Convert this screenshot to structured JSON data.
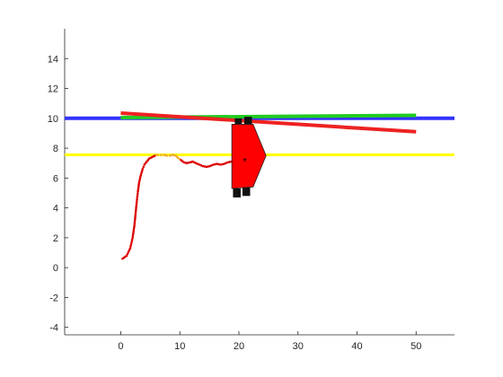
{
  "chart_data": {
    "type": "line",
    "title": "",
    "xlabel": "",
    "ylabel": "",
    "xlim": [
      -9.5,
      56.5
    ],
    "ylim": [
      -4.5,
      16
    ],
    "grid": false,
    "axis_box": "left-bottom",
    "x_ticks": [
      0,
      10,
      20,
      30,
      40,
      50
    ],
    "x_tick_labels": [
      "0",
      "10",
      "20",
      "30",
      "40",
      "50"
    ],
    "y_ticks": [
      -4,
      -2,
      0,
      2,
      4,
      6,
      8,
      10,
      12,
      14
    ],
    "y_tick_labels": [
      "-4",
      "-2",
      "0",
      "2",
      "4",
      "6",
      "8",
      "10",
      "12",
      "14"
    ],
    "series": [
      {
        "kind": "line",
        "color": "#ffff00",
        "width": 3,
        "x": [
          -9.5,
          56.5
        ],
        "y": [
          7.55,
          7.55
        ]
      },
      {
        "kind": "line",
        "color": "#3333ff",
        "width": 4,
        "x": [
          -9.5,
          56.5
        ],
        "y": [
          10.0,
          10.0
        ]
      },
      {
        "kind": "line",
        "color": "#22cc22",
        "width": 4,
        "x": [
          0,
          50
        ],
        "y": [
          10.05,
          10.2
        ]
      },
      {
        "kind": "line",
        "color": "#ee2222",
        "width": 4,
        "x": [
          0,
          50
        ],
        "y": [
          10.35,
          9.1
        ]
      },
      {
        "kind": "dotted-path",
        "color": "#dd0000",
        "x": [
          0.3,
          1.0,
          1.6,
          2.0,
          2.3,
          2.5,
          2.7,
          2.9,
          3.1,
          3.4,
          3.7,
          4.0,
          4.4,
          4.8,
          5.3,
          5.8,
          6.3,
          6.8,
          7.3,
          7.8,
          8.3,
          8.8,
          9.3,
          9.7,
          10.2,
          10.7,
          11.2,
          11.7,
          12.2,
          12.7,
          13.3,
          13.9,
          14.5,
          15.1,
          15.7,
          16.3,
          16.9,
          17.5,
          18.1,
          18.7,
          19.3,
          19.9,
          20.5,
          21.0
        ],
        "y": [
          0.6,
          0.8,
          1.3,
          2.0,
          2.8,
          3.6,
          4.4,
          5.1,
          5.7,
          6.2,
          6.6,
          6.9,
          7.1,
          7.3,
          7.4,
          7.5,
          7.55,
          7.55,
          7.55,
          7.5,
          7.5,
          7.55,
          7.5,
          7.35,
          7.2,
          7.05,
          7.0,
          7.05,
          7.1,
          7.0,
          6.9,
          6.8,
          6.75,
          6.8,
          6.9,
          6.95,
          6.9,
          6.95,
          7.05,
          7.1,
          7.15,
          7.15,
          7.2,
          7.2
        ],
        "highlight_color": "#f0b030",
        "highlight_x_range": [
          6.0,
          10.0
        ]
      }
    ],
    "vehicle": {
      "center": [
        21.0,
        7.2
      ],
      "body_color": "#ff0000",
      "edge_color": "#222222",
      "wheel_color": "#111111",
      "center_marker": "*",
      "body_polygon": [
        [
          18.8,
          9.6
        ],
        [
          22.4,
          9.6
        ],
        [
          24.6,
          7.5
        ],
        [
          22.4,
          5.4
        ],
        [
          18.8,
          5.3
        ]
      ],
      "wheels": [
        [
          [
            19.3,
            9.5
          ],
          [
            20.5,
            9.5
          ],
          [
            20.5,
            10.0
          ],
          [
            19.3,
            10.0
          ]
        ],
        [
          [
            20.9,
            9.6
          ],
          [
            22.2,
            9.6
          ],
          [
            22.2,
            10.1
          ],
          [
            20.9,
            10.1
          ]
        ],
        [
          [
            19.0,
            4.7
          ],
          [
            20.3,
            4.7
          ],
          [
            20.3,
            5.3
          ],
          [
            19.0,
            5.3
          ]
        ],
        [
          [
            20.6,
            4.8
          ],
          [
            21.9,
            4.8
          ],
          [
            21.9,
            5.4
          ],
          [
            20.6,
            5.4
          ]
        ]
      ]
    }
  }
}
